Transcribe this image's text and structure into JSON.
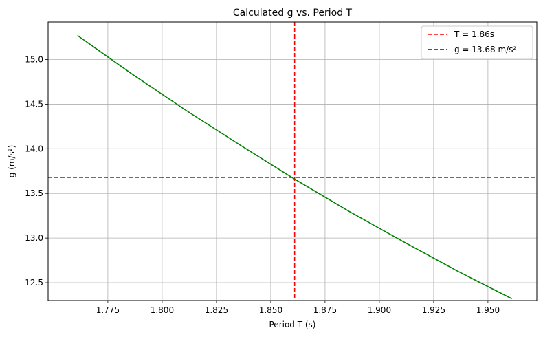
{
  "chart_data": {
    "type": "line",
    "title": "Calculated g vs. Period T",
    "xlabel": "Period T (s)",
    "ylabel": "g (m/s²)",
    "xlim": [
      1.7475,
      1.9725
    ],
    "ylim": [
      12.3,
      15.42
    ],
    "xticks": [
      "1.775",
      "1.800",
      "1.825",
      "1.850",
      "1.875",
      "1.900",
      "1.925",
      "1.950"
    ],
    "yticks": [
      "12.5",
      "13.0",
      "13.5",
      "14.0",
      "14.5",
      "15.0"
    ],
    "grid": true,
    "legend_position": "top-right",
    "series": [
      {
        "color": "#008000",
        "style": "solid",
        "x": [
          1.761,
          1.786,
          1.811,
          1.836,
          1.861,
          1.886,
          1.911,
          1.936,
          1.961
        ],
        "y": [
          15.27,
          14.84,
          14.43,
          14.04,
          13.66,
          13.3,
          12.96,
          12.63,
          12.32
        ]
      }
    ],
    "reference_lines": [
      {
        "name": "T = 1.86s",
        "orientation": "vertical",
        "value": 1.861,
        "color": "#ff0000",
        "style": "dashed"
      },
      {
        "name": "g = 13.68 m/s²",
        "orientation": "horizontal",
        "value": 13.68,
        "color": "#0000cc",
        "style": "dashed"
      }
    ]
  }
}
